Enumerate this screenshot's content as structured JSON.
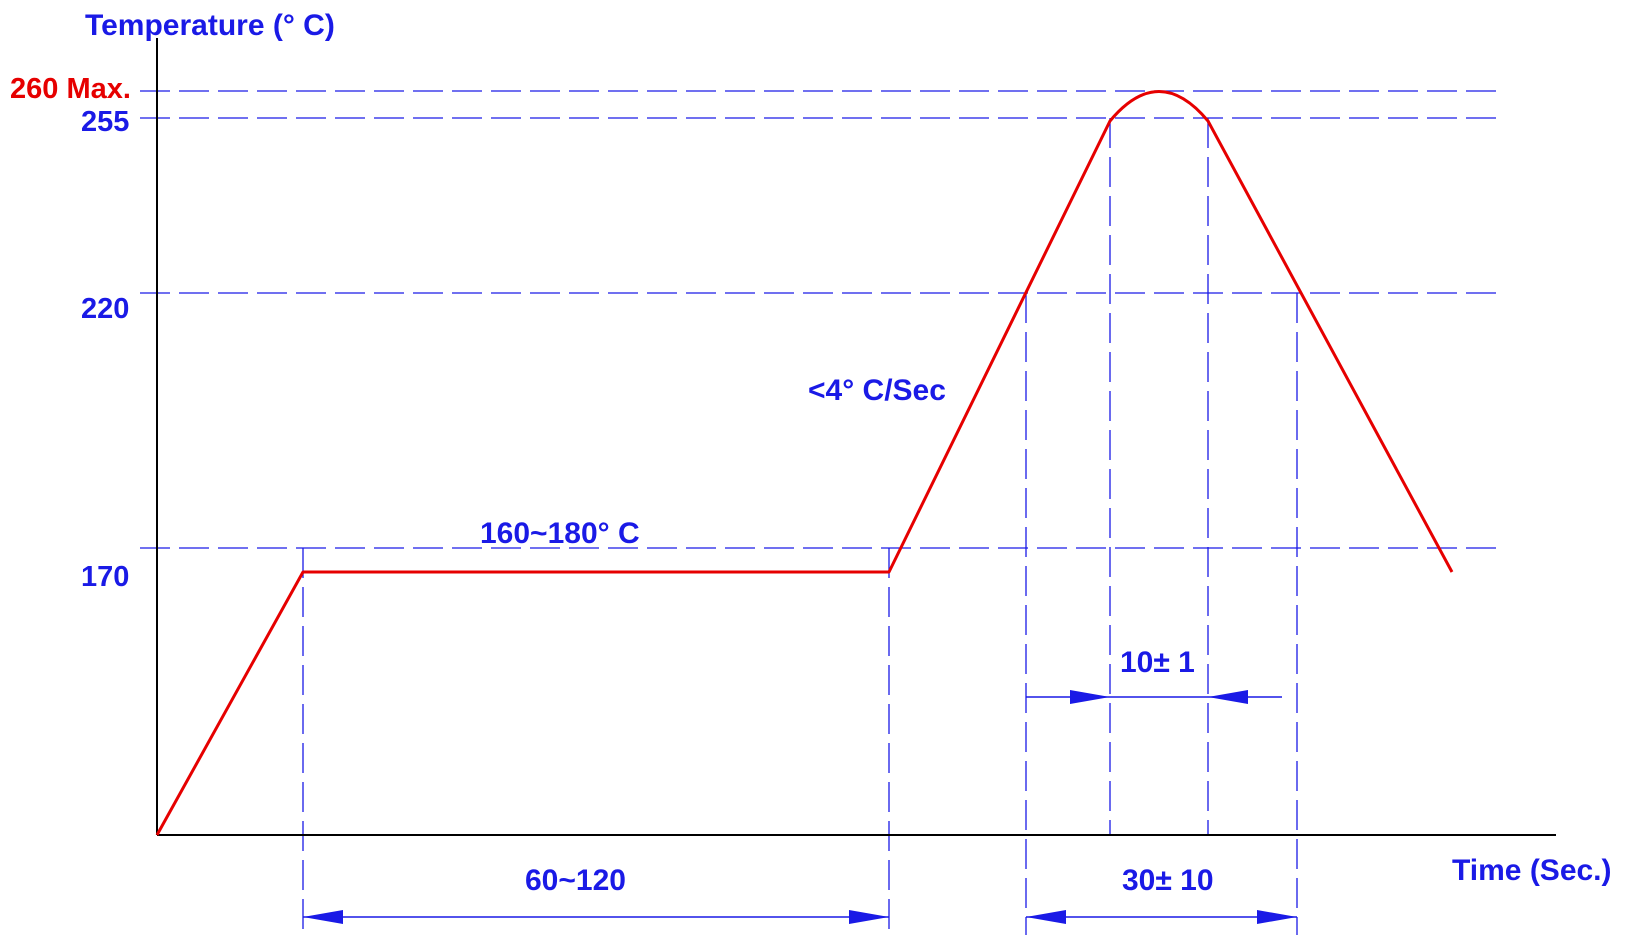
{
  "colors": {
    "axis": "#000000",
    "profile_line": "#e60000",
    "guide_lines": "#1a1ae6",
    "label_text": "#1a1ae6",
    "max_label_text": "#e60000"
  },
  "chart_data": {
    "type": "line",
    "title": "",
    "xlabel": "Time (Sec.)",
    "ylabel": "Temperature (° C)",
    "grid": false,
    "yticks": [
      {
        "value": 260,
        "label": "260 Max.",
        "highlight": true
      },
      {
        "value": 255,
        "label": "255",
        "highlight": false
      },
      {
        "value": 220,
        "label": "220",
        "highlight": false
      },
      {
        "value": 170,
        "label": "170",
        "highlight": false
      }
    ],
    "series": [
      {
        "points": [
          {
            "t": "start",
            "temp": null
          },
          {
            "t": "preheat-start",
            "temp": 170
          },
          {
            "t": "preheat-end",
            "temp": 170
          },
          {
            "t": "reach-255",
            "temp": 255
          },
          {
            "t": "peak",
            "temp": 260
          },
          {
            "t": "leave-255",
            "temp": 255
          },
          {
            "t": "end",
            "temp": 170
          }
        ]
      }
    ],
    "annotations": [
      {
        "key": "preheat_range",
        "text": "160~180° C"
      },
      {
        "key": "ramp_rate",
        "text": "<4° C/Sec"
      },
      {
        "key": "time_above_255",
        "text": "10± 1"
      },
      {
        "key": "preheat_time",
        "text": "60~120"
      },
      {
        "key": "time_above_220",
        "text": "30± 10"
      }
    ]
  }
}
